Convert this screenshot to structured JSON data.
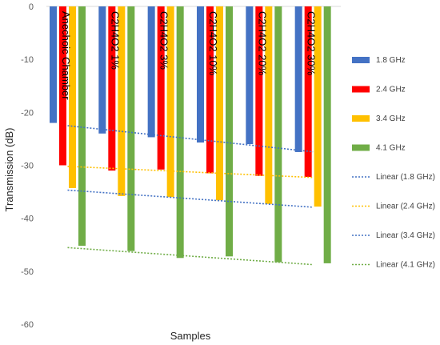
{
  "chart_data": {
    "type": "bar",
    "xlabel": "Samples",
    "ylabel": "Transmission (dB)",
    "ylim": [
      -60,
      0
    ],
    "yticks": [
      0,
      -10,
      -20,
      -30,
      -40,
      -50,
      -60
    ],
    "categories": [
      "Anechoic Chamber",
      "C2H4O2 1%",
      "C2H4O2 3%",
      "C2H4O2 10%",
      "C2H4O2 20%",
      "C2H4O2 30%"
    ],
    "series": [
      {
        "name": "1.8 GHz",
        "color": "#4472C4",
        "values": [
          -22,
          -24,
          -24.7,
          -25.7,
          -26,
          -27.5
        ]
      },
      {
        "name": "2.4 GHz",
        "color": "#FF0000",
        "values": [
          -30,
          -31,
          -30.8,
          -31.5,
          -32,
          -32.2
        ]
      },
      {
        "name": "3.4 GHz",
        "color": "#FFC000",
        "values": [
          -34.3,
          -35.8,
          -36,
          -36.6,
          -37.3,
          -37.8
        ]
      },
      {
        "name": "4.1 GHz",
        "color": "#70AD47",
        "values": [
          -45.2,
          -46.2,
          -47.5,
          -47.2,
          -48.3,
          -48.5
        ]
      }
    ],
    "trendlines": [
      {
        "name": "Linear (1.8 GHz)",
        "color": "#4472C4",
        "type": "linear"
      },
      {
        "name": "Linear (2.4 GHz)",
        "color": "#FFC000",
        "type": "linear"
      },
      {
        "name": "Linear (3.4 GHz)",
        "color": "#4472C4",
        "type": "linear"
      },
      {
        "name": "Linear (4.1 GHz)",
        "color": "#70AD47",
        "type": "linear"
      }
    ],
    "grid": false,
    "legend_position": "right"
  }
}
